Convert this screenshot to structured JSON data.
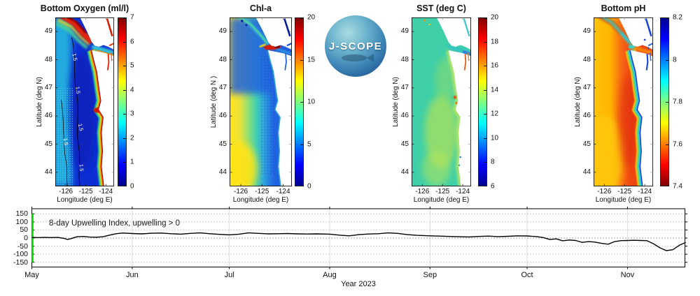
{
  "logo": {
    "label": "J-SCOPE"
  },
  "maps": [
    {
      "key": "bottom-oxygen",
      "title": "Bottom Oxygen (ml/l)",
      "xlabel": "Longitude (deg E)",
      "ylabel": "Latitude (deg N)",
      "lon_ticks": [
        "-126",
        "-125",
        "-124"
      ],
      "lat_ticks": [
        "49",
        "48",
        "47",
        "46",
        "45",
        "44"
      ],
      "colorbar_ticks": [
        "7",
        "6",
        "5",
        "4",
        "3",
        "2",
        "1",
        "0"
      ],
      "colorbar_direction": "max-top",
      "contour_label": "1.5"
    },
    {
      "key": "chl-a",
      "title": "Chl-a",
      "xlabel": "Longitude (deg E)",
      "ylabel": "Latitude (deg N )",
      "lon_ticks": [
        "-126",
        "-125",
        "-124"
      ],
      "lat_ticks": [
        "49",
        "48",
        "47",
        "46",
        "45",
        "44"
      ],
      "colorbar_ticks": [
        "20",
        "15",
        "10",
        "5",
        "0"
      ],
      "colorbar_direction": "max-top"
    },
    {
      "key": "sst",
      "title": "SST (deg C)",
      "xlabel": "Longitude (deg E)",
      "ylabel": "Latitude (deg N)",
      "lon_ticks": [
        "-126",
        "-125",
        "-124"
      ],
      "lat_ticks": [
        "49",
        "48",
        "47",
        "46",
        "45",
        "44"
      ],
      "colorbar_ticks": [
        "20",
        "18",
        "16",
        "14",
        "12",
        "10",
        "8",
        "6"
      ],
      "colorbar_direction": "max-top"
    },
    {
      "key": "bottom-ph",
      "title": "Bottom pH",
      "xlabel": "Longitude (deg E)",
      "ylabel": "Latitude (deg N)",
      "lon_ticks": [
        "-126",
        "-125",
        "-124"
      ],
      "lat_ticks": [
        "49",
        "48",
        "47",
        "46",
        "45",
        "44"
      ],
      "colorbar_ticks": [
        "8.2",
        "8",
        "7.8",
        "7.6",
        "7.4"
      ],
      "colorbar_direction": "max-top-reversed-colors"
    }
  ],
  "colors": {
    "jet_stops_bottom_to_top": [
      "#00008f",
      "#0000ff",
      "#00ffff",
      "#ffff00",
      "#ff0000",
      "#7f0000"
    ],
    "jet_stop_positions_pct": [
      0,
      12.5,
      37.5,
      62.5,
      87.5,
      100
    ],
    "upwelling_line": "#000000",
    "forecast_start_line": "#00e400",
    "land": "#ffffff"
  },
  "timeseries": {
    "annotation": "8-day Upwelling Index, upwelling > 0",
    "xlabel": "Year 2023",
    "month_labels": [
      "May",
      "Jun",
      "Jul",
      "Aug",
      "Sep",
      "Oct",
      "Nov"
    ],
    "y_tick_labels": [
      "150",
      "100",
      "50",
      "0",
      "-50",
      "-100",
      "-150"
    ]
  },
  "chart_data": [
    {
      "type": "heatmap",
      "title": "Bottom Oxygen (ml/l)",
      "xlabel": "Longitude (deg E)",
      "ylabel": "Latitude (deg N)",
      "x_ticks": [
        -126,
        -125,
        -124
      ],
      "y_ticks": [
        49,
        48,
        47,
        46,
        45,
        44
      ],
      "colormap": "jet",
      "colorbar_range": [
        0,
        7
      ],
      "colorbar_ticks": [
        0,
        1,
        2,
        3,
        4,
        5,
        6,
        7
      ],
      "contour_level_label": "1.5"
    },
    {
      "type": "heatmap",
      "title": "Chl-a",
      "xlabel": "Longitude (deg E)",
      "ylabel": "Latitude (deg N )",
      "x_ticks": [
        -126,
        -125,
        -124
      ],
      "y_ticks": [
        49,
        48,
        47,
        46,
        45,
        44
      ],
      "colormap": "jet",
      "colorbar_range": [
        0,
        20
      ],
      "colorbar_ticks": [
        0,
        5,
        10,
        15,
        20
      ]
    },
    {
      "type": "heatmap",
      "title": "SST (deg C)",
      "xlabel": "Longitude (deg E)",
      "ylabel": "Latitude (deg N)",
      "x_ticks": [
        -126,
        -125,
        -124
      ],
      "y_ticks": [
        49,
        48,
        47,
        46,
        45,
        44
      ],
      "colormap": "jet",
      "colorbar_range": [
        6,
        20
      ],
      "colorbar_ticks": [
        6,
        8,
        10,
        12,
        14,
        16,
        18,
        20
      ]
    },
    {
      "type": "heatmap",
      "title": "Bottom pH",
      "xlabel": "Longitude (deg E)",
      "ylabel": "Latitude (deg N)",
      "x_ticks": [
        -126,
        -125,
        -124
      ],
      "y_ticks": [
        49,
        48,
        47,
        46,
        45,
        44
      ],
      "colormap": "jet reversed (high values blue)",
      "colorbar_range": [
        7.4,
        8.2
      ],
      "colorbar_ticks": [
        7.4,
        7.6,
        7.8,
        8.0,
        8.2
      ]
    },
    {
      "type": "line",
      "title": "8-day Upwelling Index, upwelling > 0",
      "xlabel": "Year 2023",
      "x_tick_labels": [
        "May",
        "Jun",
        "Jul",
        "Aug",
        "Sep",
        "Oct",
        "Nov"
      ],
      "x_tick_days": [
        0,
        31,
        61,
        92,
        123,
        153,
        184
      ],
      "x_unit": "days since May 1, 2023",
      "ylim": [
        -180,
        180
      ],
      "y_ticks": [
        150,
        100,
        50,
        0,
        -50,
        -100,
        -150
      ],
      "zero_line": true,
      "start_marker": {
        "day": 0,
        "color": "#00e400"
      },
      "series": [
        {
          "name": "8-day Upwelling Index",
          "color": "#000000",
          "days": [
            0,
            2,
            4,
            6,
            8,
            10,
            11,
            12,
            14,
            16,
            18,
            20,
            22,
            24,
            26,
            28,
            31,
            34,
            37,
            40,
            43,
            46,
            49,
            52,
            55,
            58,
            61,
            64,
            67,
            70,
            73,
            76,
            79,
            82,
            85,
            88,
            92,
            95,
            98,
            101,
            104,
            107,
            110,
            113,
            116,
            119,
            123,
            126,
            129,
            132,
            135,
            138,
            141,
            144,
            147,
            150,
            153,
            156,
            158,
            160,
            162,
            164,
            166,
            168,
            170,
            172,
            174,
            176,
            178,
            180,
            182,
            184,
            186,
            188,
            190,
            192,
            194,
            196,
            198,
            200,
            202
          ],
          "values": [
            4,
            3,
            4,
            3,
            4,
            -2,
            -9,
            -4,
            8,
            10,
            6,
            5,
            8,
            18,
            27,
            31,
            28,
            26,
            30,
            31,
            27,
            24,
            29,
            32,
            27,
            23,
            20,
            24,
            32,
            29,
            26,
            27,
            28,
            26,
            25,
            26,
            24,
            18,
            14,
            21,
            25,
            27,
            32,
            29,
            21,
            17,
            14,
            12,
            10,
            8,
            7,
            10,
            12,
            9,
            11,
            14,
            13,
            9,
            3,
            -9,
            -5,
            -17,
            -12,
            -15,
            -27,
            -22,
            -25,
            -33,
            -38,
            -22,
            -16,
            -15,
            -14,
            -15,
            -16,
            -35,
            -60,
            -78,
            -72,
            -45,
            -27
          ]
        }
      ]
    }
  ]
}
